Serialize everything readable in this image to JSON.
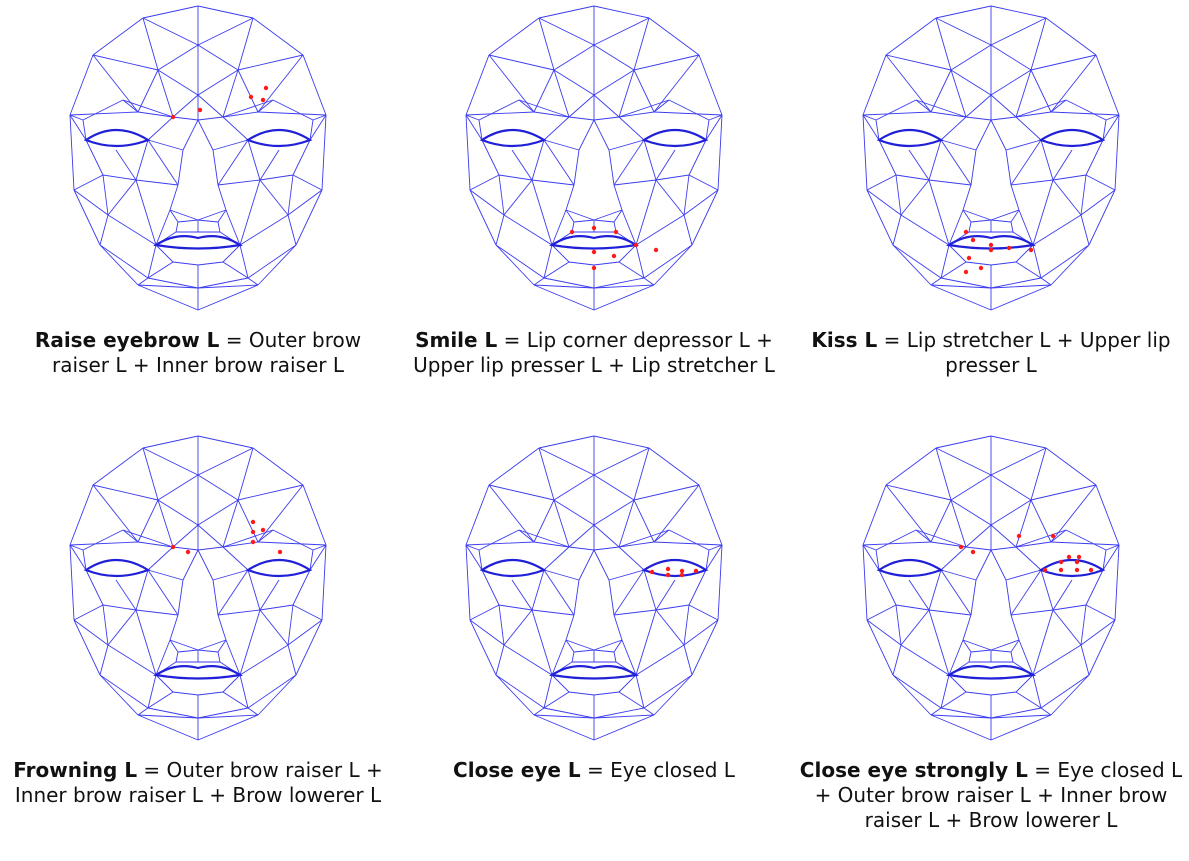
{
  "panels": [
    {
      "id": "raise-eyebrow",
      "title": "Raise eyebrow L",
      "formula": " = Outer brow raiser L + Inner brow raiser L",
      "caption_lines": [
        [
          "Raise eyebrow L",
          " = Outer brow"
        ],
        [
          "",
          "raiser L + Inner brow raiser L"
        ]
      ],
      "markers": "brow-raise"
    },
    {
      "id": "smile",
      "title": "Smile L",
      "caption_lines": [
        [
          "Smile L",
          " = Lip corner depressor L +"
        ],
        [
          "",
          "Upper lip presser L + Lip stretcher L"
        ]
      ],
      "markers": "smile"
    },
    {
      "id": "kiss",
      "title": "Kiss L",
      "caption_lines": [
        [
          "Kiss L",
          " = Lip stretcher L + Upper lip"
        ],
        [
          "",
          "presser L"
        ]
      ],
      "markers": "kiss"
    },
    {
      "id": "frowning",
      "title": "Frowning L",
      "caption_lines": [
        [
          "Frowning L",
          " = Outer brow raiser L +"
        ],
        [
          "",
          "Inner brow raiser L + Brow lowerer L"
        ]
      ],
      "markers": "frown"
    },
    {
      "id": "close-eye",
      "title": "Close eye L",
      "caption_lines": [
        [
          "Close eye L",
          " = Eye closed L"
        ]
      ],
      "markers": "eye-close"
    },
    {
      "id": "close-eye-strongly",
      "title": "Close eye strongly L",
      "caption_lines": [
        [
          "Close eye strongly L",
          " = Eye closed L"
        ],
        [
          "",
          "+ Outer brow raiser L + Inner brow"
        ],
        [
          "",
          "raiser L + Brow lowerer L"
        ]
      ],
      "markers": "eye-close-strong"
    }
  ],
  "colors": {
    "mesh": "#3b3bf0",
    "marker": "#ff1a1a"
  }
}
